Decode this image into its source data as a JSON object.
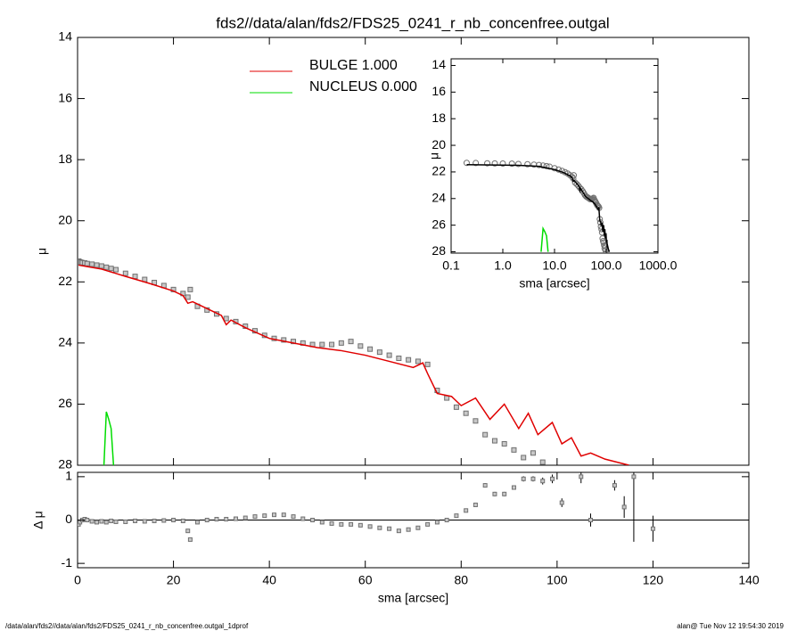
{
  "footer_left": "/data/alan/fds2//data/alan/fds2/FDS25_0241_r_nb_concenfree.outgal_1dprof",
  "footer_right": "alan@  Tue Nov 12 19:54:30 2019",
  "chart_data": [
    {
      "type": "line",
      "title": "fds2//data/alan/fds2/FDS25_0241_r_nb_concenfree.outgal",
      "ylabel": "μ",
      "xlim": [
        0,
        140
      ],
      "ylim": [
        14,
        28
      ],
      "y_inverted": true,
      "xticks": [
        0,
        20,
        40,
        60,
        80,
        100,
        120,
        140
      ],
      "yticks": [
        14,
        16,
        18,
        20,
        22,
        24,
        26,
        28
      ],
      "legend": "upper center",
      "series": [
        {
          "mode": "markers",
          "color": "#707070",
          "x": [
            0.2,
            0.3,
            0.5,
            0.7,
            1,
            1.5,
            2,
            3,
            4,
            5,
            6,
            7,
            8,
            10,
            12,
            14,
            16,
            18,
            20,
            22,
            23,
            23.5,
            25,
            27,
            29,
            31,
            33,
            35,
            37,
            39,
            41,
            43,
            45,
            47,
            49,
            51,
            53,
            55,
            57,
            59,
            61,
            63,
            65,
            67,
            69,
            71,
            73,
            75,
            77,
            79,
            81,
            83,
            85,
            87,
            89,
            91,
            93,
            95,
            97,
            99,
            101
          ],
          "values": [
            21.32,
            21.33,
            21.35,
            21.36,
            21.37,
            21.38,
            21.4,
            21.42,
            21.45,
            21.48,
            21.52,
            21.56,
            21.6,
            21.72,
            21.82,
            21.92,
            22.02,
            22.12,
            22.25,
            22.38,
            22.5,
            22.25,
            22.8,
            22.92,
            23.05,
            23.2,
            23.3,
            23.45,
            23.6,
            23.75,
            23.85,
            23.9,
            23.95,
            24.0,
            24.05,
            24.05,
            24.05,
            24.0,
            23.95,
            24.1,
            24.2,
            24.3,
            24.4,
            24.5,
            24.55,
            24.6,
            24.7,
            25.55,
            25.8,
            26.1,
            26.3,
            26.55,
            27.0,
            27.2,
            27.3,
            27.5,
            27.75,
            27.6,
            27.9,
            28.2,
            28.1
          ]
        },
        {
          "name": "BULGE  1.000",
          "color": "#e00000",
          "x": [
            0.2,
            2,
            5,
            10,
            15,
            20,
            22,
            23,
            24,
            28,
            30,
            31,
            32,
            35,
            40,
            45,
            50,
            55,
            60,
            65,
            70,
            72,
            73,
            75,
            78,
            80,
            83,
            86,
            89,
            92,
            94,
            96,
            99,
            101,
            103,
            105,
            107,
            110,
            115
          ],
          "values": [
            21.45,
            21.5,
            21.58,
            21.82,
            22.05,
            22.3,
            22.45,
            22.7,
            22.65,
            22.95,
            23.1,
            23.4,
            23.25,
            23.5,
            23.85,
            24.0,
            24.15,
            24.25,
            24.4,
            24.6,
            24.8,
            24.65,
            25.0,
            25.65,
            25.75,
            26.05,
            25.8,
            26.5,
            26.0,
            26.8,
            26.3,
            27.0,
            26.6,
            27.3,
            27.1,
            27.7,
            27.6,
            27.8,
            28.0
          ]
        },
        {
          "name": "NUCLEUS  0.000",
          "color": "#00dd00",
          "x": [
            5.5,
            6,
            6.5,
            7,
            7.5
          ],
          "values": [
            28.0,
            26.25,
            26.5,
            26.8,
            28.0
          ]
        }
      ]
    },
    {
      "type": "errorbar",
      "ylabel": "Δ μ",
      "xlabel": "sma [arcsec]",
      "xlim": [
        0,
        140
      ],
      "ylim": [
        -1.1,
        1.1
      ],
      "xticks": [
        0,
        20,
        40,
        60,
        80,
        100,
        120,
        140
      ],
      "yticks": [
        -1,
        0,
        1
      ],
      "reference_line": 0,
      "color": "#707070",
      "x": [
        0.2,
        0.5,
        1,
        1.5,
        2,
        3,
        4,
        5,
        6,
        7,
        8,
        10,
        12,
        14,
        16,
        18,
        20,
        22,
        23,
        23.5,
        25,
        27,
        29,
        31,
        33,
        35,
        37,
        39,
        41,
        43,
        45,
        47,
        49,
        51,
        53,
        55,
        57,
        59,
        61,
        63,
        65,
        67,
        69,
        71,
        73,
        75,
        77,
        79,
        81,
        83,
        85,
        87,
        89,
        91,
        93,
        95,
        97,
        99,
        101,
        105,
        107,
        112,
        114,
        116,
        120
      ],
      "values": [
        -0.1,
        -0.05,
        0,
        0.02,
        0,
        -0.03,
        -0.05,
        -0.03,
        -0.05,
        -0.02,
        -0.04,
        -0.04,
        -0.02,
        -0.03,
        -0.02,
        -0.01,
        0,
        -0.02,
        -0.25,
        -0.45,
        -0.05,
        0,
        0.02,
        0.02,
        0.03,
        0.05,
        0.08,
        0.1,
        0.12,
        0.12,
        0.08,
        0.03,
        0,
        -0.05,
        -0.08,
        -0.1,
        -0.1,
        -0.12,
        -0.15,
        -0.18,
        -0.2,
        -0.25,
        -0.22,
        -0.18,
        -0.1,
        -0.05,
        0,
        0.1,
        0.22,
        0.35,
        0.8,
        0.6,
        0.6,
        0.75,
        0.95,
        0.95,
        0.9,
        0.95,
        0.4,
        1.0,
        0.0,
        0.8,
        0.3,
        1.0,
        -0.2
      ],
      "errors": [
        0.02,
        0.02,
        0.02,
        0.02,
        0.02,
        0.02,
        0.02,
        0.02,
        0.02,
        0.02,
        0.02,
        0.02,
        0.02,
        0.02,
        0.02,
        0.02,
        0.02,
        0.02,
        0.02,
        0.02,
        0.02,
        0.02,
        0.02,
        0.02,
        0.02,
        0.02,
        0.02,
        0.02,
        0.02,
        0.02,
        0.02,
        0.02,
        0.02,
        0.02,
        0.02,
        0.02,
        0.02,
        0.02,
        0.02,
        0.02,
        0.02,
        0.02,
        0.02,
        0.02,
        0.02,
        0.02,
        0.02,
        0.02,
        0.02,
        0.02,
        0.05,
        0.05,
        0.05,
        0.05,
        0.06,
        0.06,
        0.08,
        0.1,
        0.1,
        0.15,
        0.15,
        0.12,
        0.25,
        1.5,
        0.3
      ]
    },
    {
      "type": "line",
      "xscale": "log",
      "xlabel": "sma [arcsec]",
      "ylabel": "μ",
      "xlim": [
        0.1,
        1000
      ],
      "ylim": [
        13.5,
        28.1
      ],
      "y_inverted": true,
      "xticks": [
        0.1,
        {
          "value": 1,
          "label": "1.0"
        },
        {
          "value": 10,
          "label": "10.0"
        },
        {
          "value": 100,
          "label": "100.0"
        },
        {
          "value": 1000,
          "label": "1000.0"
        }
      ],
      "yticks": [
        14,
        16,
        18,
        20,
        22,
        24,
        26,
        28
      ],
      "model_color": "#000000"
    }
  ]
}
